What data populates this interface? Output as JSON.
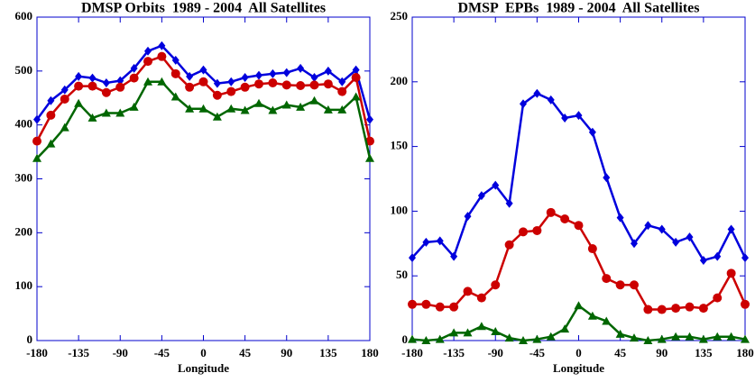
{
  "chart_data": [
    {
      "type": "line",
      "title": "DMSP Orbits  1989 - 2004  All Satellites",
      "x_label": "Longitude",
      "x": [
        -180,
        -165,
        -150,
        -135,
        -120,
        -105,
        -90,
        -75,
        -60,
        -45,
        -30,
        -15,
        0,
        15,
        30,
        45,
        60,
        75,
        90,
        105,
        120,
        135,
        150,
        165,
        180
      ],
      "xlim": [
        -180,
        180
      ],
      "xticks": [
        -180,
        -135,
        -90,
        -45,
        0,
        45,
        90,
        135,
        180
      ],
      "ylim": [
        0,
        600
      ],
      "yticks": [
        0,
        100,
        200,
        300,
        400,
        500,
        600
      ],
      "series": [
        {
          "color": "#0000dd",
          "marker": "diamond",
          "values": [
            410,
            445,
            465,
            490,
            487,
            478,
            482,
            505,
            537,
            547,
            520,
            490,
            502,
            477,
            480,
            488,
            492,
            495,
            497,
            505,
            488,
            500,
            480,
            502,
            410
          ]
        },
        {
          "color": "#cc0000",
          "marker": "circle",
          "values": [
            370,
            418,
            448,
            472,
            472,
            460,
            470,
            487,
            518,
            527,
            495,
            470,
            480,
            455,
            462,
            470,
            476,
            478,
            474,
            473,
            474,
            476,
            462,
            488,
            370
          ]
        },
        {
          "color": "#006600",
          "marker": "triangle",
          "values": [
            338,
            365,
            395,
            440,
            413,
            422,
            422,
            433,
            480,
            480,
            452,
            430,
            430,
            415,
            430,
            427,
            440,
            427,
            437,
            433,
            445,
            428,
            428,
            452,
            338
          ]
        }
      ]
    },
    {
      "type": "line",
      "title": "DMSP  EPBs  1989 - 2004  All Satellites",
      "x_label": "Longitude",
      "x": [
        -180,
        -165,
        -150,
        -135,
        -120,
        -105,
        -90,
        -75,
        -60,
        -45,
        -30,
        -15,
        0,
        15,
        30,
        45,
        60,
        75,
        90,
        105,
        120,
        135,
        150,
        165,
        180
      ],
      "xlim": [
        -180,
        180
      ],
      "xticks": [
        -180,
        -135,
        -90,
        -45,
        0,
        45,
        90,
        135,
        180
      ],
      "ylim": [
        0,
        250
      ],
      "yticks": [
        0,
        50,
        100,
        150,
        200,
        250
      ],
      "series": [
        {
          "color": "#0000dd",
          "marker": "diamond",
          "values": [
            64,
            76,
            77,
            65,
            96,
            112,
            120,
            106,
            183,
            191,
            186,
            172,
            174,
            161,
            126,
            95,
            75,
            89,
            86,
            76,
            80,
            62,
            65,
            86,
            64
          ]
        },
        {
          "color": "#cc0000",
          "marker": "circle",
          "values": [
            28,
            28,
            26,
            26,
            38,
            33,
            43,
            74,
            84,
            85,
            99,
            94,
            89,
            71,
            48,
            43,
            43,
            24,
            24,
            25,
            26,
            25,
            33,
            52,
            28
          ]
        },
        {
          "color": "#006600",
          "marker": "triangle",
          "values": [
            1,
            0,
            1,
            6,
            6,
            11,
            7,
            2,
            0,
            1,
            3,
            9,
            27,
            19,
            15,
            5,
            2,
            0,
            1,
            3,
            3,
            1,
            3,
            3,
            1
          ]
        }
      ]
    }
  ]
}
